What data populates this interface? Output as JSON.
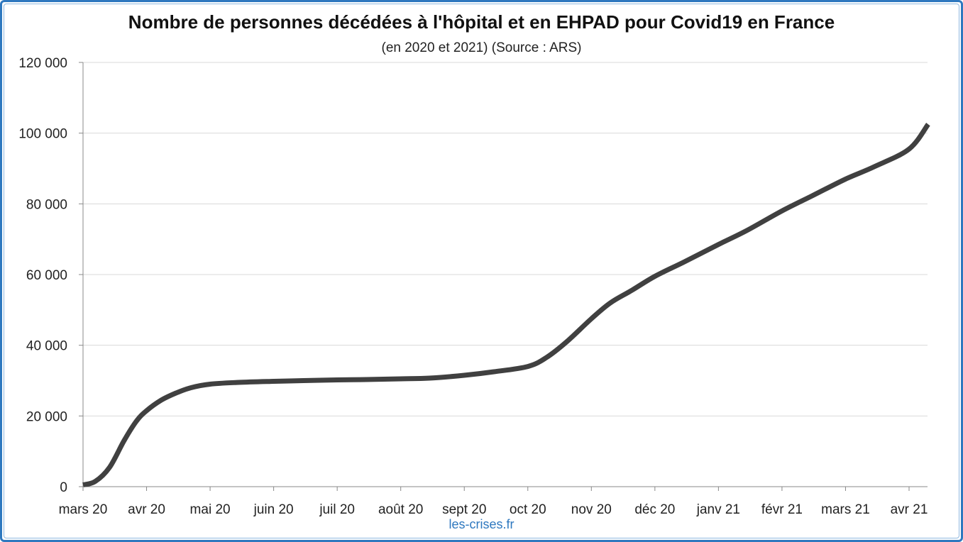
{
  "chart_data": {
    "type": "line",
    "title": "Nombre de personnes décédées à l'hôpital et en EHPAD pour Covid19 en France",
    "subtitle": "(en 2020 et 2021) (Source : ARS)",
    "credit": "les-crises.fr",
    "ylim": [
      0,
      120000
    ],
    "yticks": [
      0,
      20000,
      40000,
      60000,
      80000,
      100000,
      120000
    ],
    "ytick_labels": [
      "0",
      "20 000",
      "40 000",
      "60 000",
      "80 000",
      "100 000",
      "120 000"
    ],
    "xtick_labels": [
      "mars 20",
      "avr 20",
      "mai 20",
      "juin 20",
      "juil 20",
      "août 20",
      "sept 20",
      "oct 20",
      "nov 20",
      "déc 20",
      "janv 21",
      "févr 21",
      "mars 21",
      "avr 21"
    ],
    "grid": true,
    "line_color": "#404040",
    "series": [
      {
        "x": [
          "2020-03-01",
          "2020-03-07",
          "2020-03-14",
          "2020-03-21",
          "2020-03-27",
          "2020-04-01",
          "2020-04-08",
          "2020-04-15",
          "2020-04-22",
          "2020-05-01",
          "2020-05-15",
          "2020-06-01",
          "2020-06-15",
          "2020-07-01",
          "2020-07-15",
          "2020-08-01",
          "2020-08-15",
          "2020-09-01",
          "2020-09-15",
          "2020-10-01",
          "2020-10-10",
          "2020-10-20",
          "2020-11-01",
          "2020-11-10",
          "2020-11-20",
          "2020-12-01",
          "2020-12-15",
          "2021-01-01",
          "2021-01-15",
          "2021-02-01",
          "2021-02-15",
          "2021-03-01",
          "2021-03-15",
          "2021-04-01",
          "2021-04-10"
        ],
        "values": [
          500,
          1500,
          5500,
          13000,
          18500,
          21500,
          24500,
          26500,
          28000,
          29000,
          29500,
          29800,
          30000,
          30200,
          30300,
          30500,
          30700,
          31500,
          32500,
          34000,
          36500,
          41000,
          47500,
          52000,
          55500,
          59500,
          63500,
          68500,
          72500,
          78000,
          82500,
          87000,
          90500,
          95500,
          102500
        ]
      }
    ]
  }
}
